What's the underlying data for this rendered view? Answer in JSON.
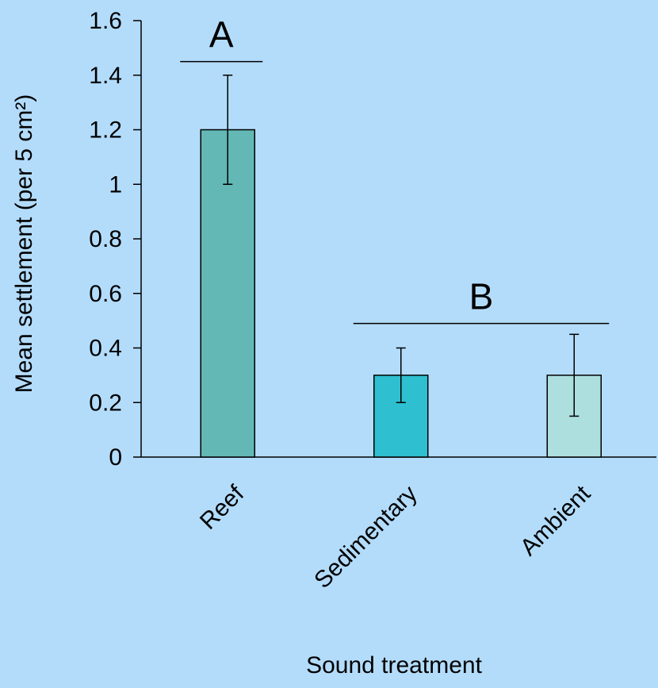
{
  "chart_data": {
    "type": "bar",
    "categories": [
      "Reef",
      "Sedimentary",
      "Ambient"
    ],
    "values": [
      1.2,
      0.3,
      0.3
    ],
    "error_low": [
      1.0,
      0.2,
      0.15
    ],
    "error_high": [
      1.4,
      0.4,
      0.45
    ],
    "bar_colors": [
      "#63b8b5",
      "#2ebfd0",
      "#aedfdf"
    ],
    "xlabel": "Sound treatment",
    "ylabel": "Mean settlement (per 5 cm²)",
    "ylim": [
      0,
      1.6
    ],
    "yticks": [
      "0",
      "0.2",
      "0.4",
      "0.6",
      "0.8",
      "1",
      "1.2",
      "1.4",
      "1.6"
    ],
    "grid": false,
    "significance_groups": [
      {
        "label": "A",
        "categories": [
          "Reef"
        ],
        "y": 1.45
      },
      {
        "label": "B",
        "categories": [
          "Sedimentary",
          "Ambient"
        ],
        "y": 0.49
      }
    ]
  }
}
